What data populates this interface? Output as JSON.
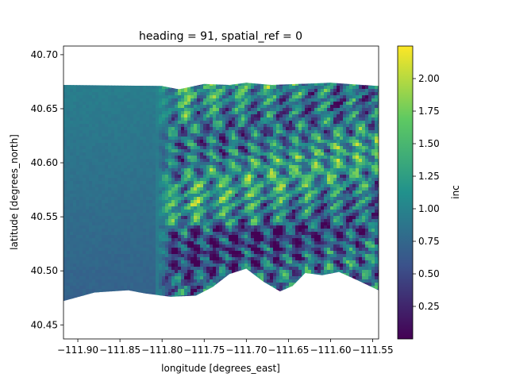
{
  "chart_data": {
    "type": "heatmap",
    "title": "heading = 91, spatial_ref = 0",
    "xlabel": "longitude [degrees_east]",
    "ylabel": "latitude [degrees_north]",
    "colorbar_label": "inc",
    "colormap": "viridis",
    "colormap_stops": [
      "#440154",
      "#3b528b",
      "#21918c",
      "#5ec962",
      "#fde725"
    ],
    "xlim": [
      -111.917,
      -111.543
    ],
    "ylim": [
      40.437,
      40.708
    ],
    "clim": [
      0.0,
      2.25
    ],
    "grid": false,
    "x_ticks": [
      {
        "value": -111.9,
        "label": "−111.90"
      },
      {
        "value": -111.85,
        "label": "−111.85"
      },
      {
        "value": -111.8,
        "label": "−111.80"
      },
      {
        "value": -111.75,
        "label": "−111.75"
      },
      {
        "value": -111.7,
        "label": "−111.70"
      },
      {
        "value": -111.65,
        "label": "−111.65"
      },
      {
        "value": -111.6,
        "label": "−111.60"
      },
      {
        "value": -111.55,
        "label": "−111.55"
      }
    ],
    "y_ticks": [
      {
        "value": 40.45,
        "label": "40.45"
      },
      {
        "value": 40.5,
        "label": "40.50"
      },
      {
        "value": 40.55,
        "label": "40.55"
      },
      {
        "value": 40.6,
        "label": "40.60"
      },
      {
        "value": 40.65,
        "label": "40.65"
      },
      {
        "value": 40.7,
        "label": "40.70"
      }
    ],
    "colorbar_ticks": [
      {
        "value": 0.25,
        "label": "0.25"
      },
      {
        "value": 0.5,
        "label": "0.50"
      },
      {
        "value": 0.75,
        "label": "0.75"
      },
      {
        "value": 1.0,
        "label": "1.00"
      },
      {
        "value": 1.25,
        "label": "1.25"
      },
      {
        "value": 1.5,
        "label": "1.50"
      },
      {
        "value": 1.75,
        "label": "1.75"
      },
      {
        "value": 2.0,
        "label": "2.00"
      }
    ],
    "data_extent": {
      "lon": [
        -111.917,
        -111.543
      ],
      "lat": [
        40.472,
        40.675
      ]
    },
    "plain_boundary_lon": -111.8,
    "plain_value": 0.95,
    "top_edge": [
      [
        -111.917,
        40.672
      ],
      [
        -111.8,
        40.671
      ],
      [
        -111.78,
        40.668
      ],
      [
        -111.75,
        40.673
      ],
      [
        -111.72,
        40.672
      ],
      [
        -111.7,
        40.674
      ],
      [
        -111.67,
        40.672
      ],
      [
        -111.6,
        40.674
      ],
      [
        -111.543,
        40.671
      ]
    ],
    "bottom_edge": [
      [
        -111.917,
        40.472
      ],
      [
        -111.88,
        40.48
      ],
      [
        -111.84,
        40.482
      ],
      [
        -111.82,
        40.479
      ],
      [
        -111.79,
        40.476
      ],
      [
        -111.76,
        40.477
      ],
      [
        -111.74,
        40.485
      ],
      [
        -111.72,
        40.497
      ],
      [
        -111.7,
        40.502
      ],
      [
        -111.68,
        40.49
      ],
      [
        -111.66,
        40.481
      ],
      [
        -111.645,
        40.486
      ],
      [
        -111.63,
        40.498
      ],
      [
        -111.61,
        40.496
      ],
      [
        -111.59,
        40.499
      ],
      [
        -111.57,
        40.492
      ],
      [
        -111.543,
        40.482
      ]
    ]
  }
}
